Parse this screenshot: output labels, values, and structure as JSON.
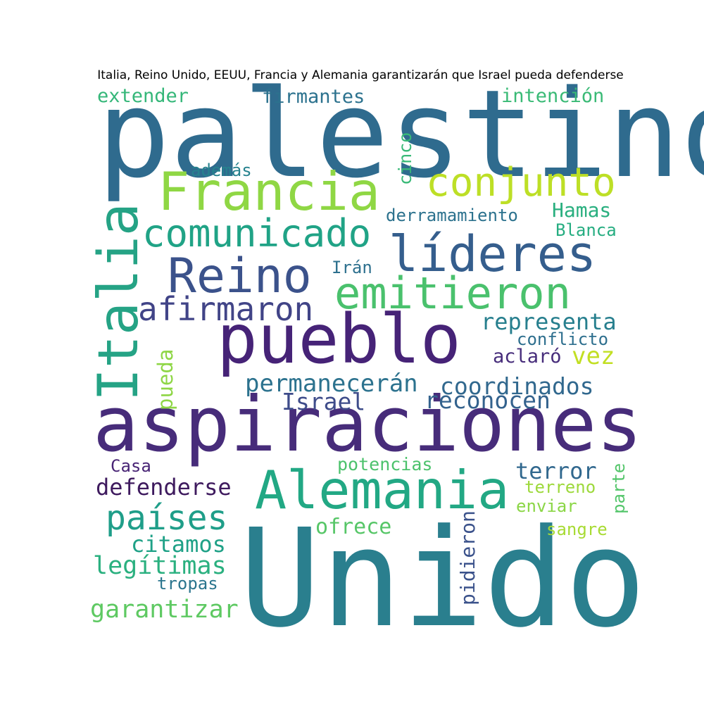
{
  "title": "Italia, Reino Unido, EEUU, Francia y Alemania garantizarán que Israel pueda defenderse",
  "words": [
    {
      "text": "palestino",
      "color": "#2f6b8e"
    },
    {
      "text": "Unido",
      "color": "#2a7f8e"
    },
    {
      "text": "aspiraciones",
      "color": "#472c7a"
    },
    {
      "text": "pueblo",
      "color": "#462377"
    },
    {
      "text": "Francia",
      "color": "#8fd744"
    },
    {
      "text": "Italia",
      "color": "#25a385"
    },
    {
      "text": "Alemania",
      "color": "#22a884"
    },
    {
      "text": "líderes",
      "color": "#355e8d"
    },
    {
      "text": "conjunto",
      "color": "#bddf26"
    },
    {
      "text": "emitieron",
      "color": "#4ac16d"
    },
    {
      "text": "comunicado",
      "color": "#20a386"
    },
    {
      "text": "Reino",
      "color": "#3b528b"
    },
    {
      "text": "afirmaron",
      "color": "#414487"
    },
    {
      "text": "países",
      "color": "#1f9e89"
    },
    {
      "text": "permanecerán",
      "color": "#2c728e"
    },
    {
      "text": "coordinados",
      "color": "#31688e"
    },
    {
      "text": "Israel",
      "color": "#3e4c8a"
    },
    {
      "text": "reconocen",
      "color": "#33628d"
    },
    {
      "text": "representa",
      "color": "#277f8e"
    },
    {
      "text": "defenderse",
      "color": "#3e1a5e"
    },
    {
      "text": "terror",
      "color": "#31688e"
    },
    {
      "text": "garantizar",
      "color": "#5ec962"
    },
    {
      "text": "legítimas",
      "color": "#2ab07f"
    },
    {
      "text": "citamos",
      "color": "#1fa187"
    },
    {
      "text": "Hamas",
      "color": "#29af7f"
    },
    {
      "text": "extender",
      "color": "#35b779"
    },
    {
      "text": "firmantes",
      "color": "#2c728e"
    },
    {
      "text": "intención",
      "color": "#3aba76"
    },
    {
      "text": "derramamiento",
      "color": "#2c728e"
    },
    {
      "text": "Blanca",
      "color": "#26ad81"
    },
    {
      "text": "conflicto",
      "color": "#2e6f8e"
    },
    {
      "text": "aclaró",
      "color": "#472d7b"
    },
    {
      "text": "vez",
      "color": "#c2df23"
    },
    {
      "text": "pueda",
      "color": "#8ed645"
    },
    {
      "text": "ofrece",
      "color": "#56c667"
    },
    {
      "text": "potencias",
      "color": "#4cc26c"
    },
    {
      "text": "además",
      "color": "#26828e"
    },
    {
      "text": "cinco",
      "color": "#38b977"
    },
    {
      "text": "Irán",
      "color": "#2d708e"
    },
    {
      "text": "Casa",
      "color": "#482475"
    },
    {
      "text": "tropas",
      "color": "#2b758e"
    },
    {
      "text": "terreno",
      "color": "#9dd93b"
    },
    {
      "text": "enviar",
      "color": "#8bd646"
    },
    {
      "text": "sangre",
      "color": "#a8db34"
    },
    {
      "text": "parte",
      "color": "#52c569"
    },
    {
      "text": "pidieron",
      "color": "#3b528b"
    }
  ]
}
